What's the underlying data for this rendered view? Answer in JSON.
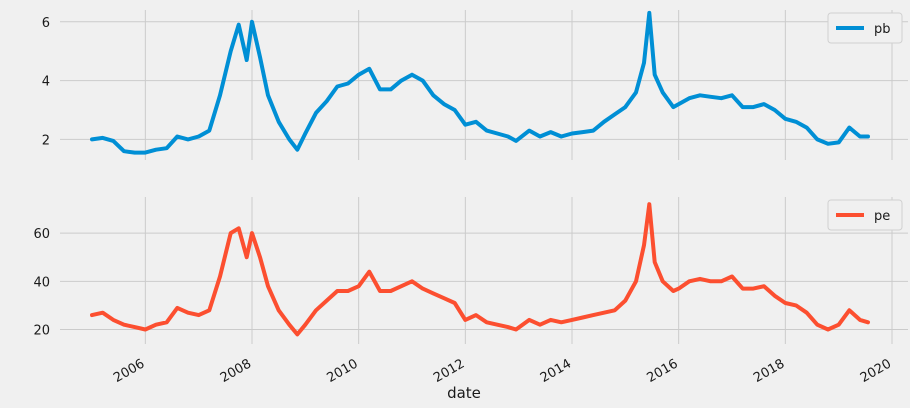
{
  "chart_data": [
    {
      "type": "line",
      "ylim": [
        1.3,
        6.4
      ],
      "yticks": [
        2,
        4,
        6
      ],
      "legend": "top-right",
      "grid": true,
      "color": "#008fd5",
      "series": [
        {
          "name": "pb",
          "x": [
            2005.0,
            2005.2,
            2005.4,
            2005.6,
            2005.8,
            2006.0,
            2006.2,
            2006.4,
            2006.6,
            2006.8,
            2007.0,
            2007.2,
            2007.4,
            2007.6,
            2007.75,
            2007.9,
            2008.0,
            2008.15,
            2008.3,
            2008.5,
            2008.7,
            2008.85,
            2009.0,
            2009.2,
            2009.4,
            2009.6,
            2009.8,
            2010.0,
            2010.2,
            2010.4,
            2010.6,
            2010.8,
            2011.0,
            2011.2,
            2011.4,
            2011.6,
            2011.8,
            2012.0,
            2012.2,
            2012.4,
            2012.6,
            2012.8,
            2012.95,
            2013.2,
            2013.4,
            2013.6,
            2013.8,
            2014.0,
            2014.2,
            2014.4,
            2014.6,
            2014.8,
            2015.0,
            2015.2,
            2015.35,
            2015.45,
            2015.55,
            2015.7,
            2015.9,
            2016.0,
            2016.2,
            2016.4,
            2016.6,
            2016.8,
            2017.0,
            2017.2,
            2017.4,
            2017.6,
            2017.8,
            2018.0,
            2018.2,
            2018.4,
            2018.6,
            2018.8,
            2019.0,
            2019.2,
            2019.4,
            2019.55
          ],
          "values": [
            2.0,
            2.05,
            1.95,
            1.6,
            1.55,
            1.55,
            1.65,
            1.7,
            2.1,
            2.0,
            2.1,
            2.3,
            3.5,
            5.0,
            5.9,
            4.7,
            6.0,
            4.8,
            3.5,
            2.6,
            2.0,
            1.65,
            2.2,
            2.9,
            3.3,
            3.8,
            3.9,
            4.2,
            4.4,
            3.7,
            3.7,
            4.0,
            4.2,
            4.0,
            3.5,
            3.2,
            3.0,
            2.5,
            2.6,
            2.3,
            2.2,
            2.1,
            1.95,
            2.3,
            2.1,
            2.25,
            2.1,
            2.2,
            2.25,
            2.3,
            2.6,
            2.85,
            3.1,
            3.6,
            4.6,
            6.3,
            4.2,
            3.6,
            3.1,
            3.2,
            3.4,
            3.5,
            3.45,
            3.4,
            3.5,
            3.1,
            3.1,
            3.2,
            3.0,
            2.7,
            2.6,
            2.4,
            2.0,
            1.85,
            1.9,
            2.4,
            2.1,
            2.1
          ]
        }
      ]
    },
    {
      "type": "line",
      "ylim": [
        14,
        75
      ],
      "yticks": [
        20,
        40,
        60
      ],
      "legend": "top-right",
      "grid": true,
      "color": "#fc4f30",
      "xlabel": "date",
      "xlim": [
        2004.4,
        2020.3
      ],
      "xticks": [
        2006,
        2008,
        2010,
        2012,
        2014,
        2016,
        2018,
        2020
      ],
      "series": [
        {
          "name": "pe",
          "x": [
            2005.0,
            2005.2,
            2005.4,
            2005.6,
            2005.8,
            2006.0,
            2006.2,
            2006.4,
            2006.6,
            2006.8,
            2007.0,
            2007.2,
            2007.4,
            2007.6,
            2007.75,
            2007.9,
            2008.0,
            2008.15,
            2008.3,
            2008.5,
            2008.7,
            2008.85,
            2009.0,
            2009.2,
            2009.4,
            2009.6,
            2009.8,
            2010.0,
            2010.2,
            2010.4,
            2010.6,
            2010.8,
            2011.0,
            2011.2,
            2011.4,
            2011.6,
            2011.8,
            2012.0,
            2012.2,
            2012.4,
            2012.6,
            2012.8,
            2012.95,
            2013.2,
            2013.4,
            2013.6,
            2013.8,
            2014.0,
            2014.2,
            2014.4,
            2014.6,
            2014.8,
            2015.0,
            2015.2,
            2015.35,
            2015.45,
            2015.55,
            2015.7,
            2015.9,
            2016.0,
            2016.2,
            2016.4,
            2016.6,
            2016.8,
            2017.0,
            2017.2,
            2017.4,
            2017.6,
            2017.8,
            2018.0,
            2018.2,
            2018.4,
            2018.6,
            2018.8,
            2019.0,
            2019.2,
            2019.4,
            2019.55
          ],
          "values": [
            26,
            27,
            24,
            22,
            21,
            20,
            22,
            23,
            29,
            27,
            26,
            28,
            42,
            60,
            62,
            50,
            60,
            50,
            38,
            28,
            22,
            18,
            22,
            28,
            32,
            36,
            36,
            38,
            44,
            36,
            36,
            38,
            40,
            37,
            35,
            33,
            31,
            24,
            26,
            23,
            22,
            21,
            20,
            24,
            22,
            24,
            23,
            24,
            25,
            26,
            27,
            28,
            32,
            40,
            55,
            72,
            48,
            40,
            36,
            37,
            40,
            41,
            40,
            40,
            42,
            37,
            37,
            38,
            34,
            31,
            30,
            27,
            22,
            20,
            22,
            28,
            24,
            23
          ]
        }
      ]
    }
  ]
}
